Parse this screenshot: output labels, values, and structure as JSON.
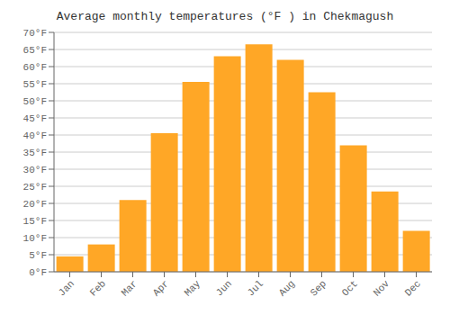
{
  "chart_data": {
    "type": "bar",
    "title": "Average monthly temperatures (°F ) in Chekmagush",
    "categories": [
      "Jan",
      "Feb",
      "Mar",
      "Apr",
      "May",
      "Jun",
      "Jul",
      "Aug",
      "Sep",
      "Oct",
      "Nov",
      "Dec"
    ],
    "values": [
      4.5,
      8.0,
      21.0,
      40.5,
      55.5,
      63.0,
      66.5,
      62.0,
      52.5,
      37.0,
      23.5,
      12.0
    ],
    "color": "#FFA726",
    "ylim": [
      0,
      70
    ],
    "yticks": [
      {
        "value": 0,
        "label": "0°F"
      },
      {
        "value": 5,
        "label": "5°F"
      },
      {
        "value": 10,
        "label": "10°F"
      },
      {
        "value": 15,
        "label": "15°F"
      },
      {
        "value": 20,
        "label": "20°F"
      },
      {
        "value": 25,
        "label": "25°F"
      },
      {
        "value": 30,
        "label": "30°F"
      },
      {
        "value": 35,
        "label": "35°F"
      },
      {
        "value": 40,
        "label": "40°F"
      },
      {
        "value": 45,
        "label": "45°F"
      },
      {
        "value": 50,
        "label": "50°F"
      },
      {
        "value": 55,
        "label": "55°F"
      },
      {
        "value": 60,
        "label": "60°F"
      },
      {
        "value": 65,
        "label": "65°F"
      },
      {
        "value": 70,
        "label": "70°F"
      }
    ],
    "grid": true
  }
}
